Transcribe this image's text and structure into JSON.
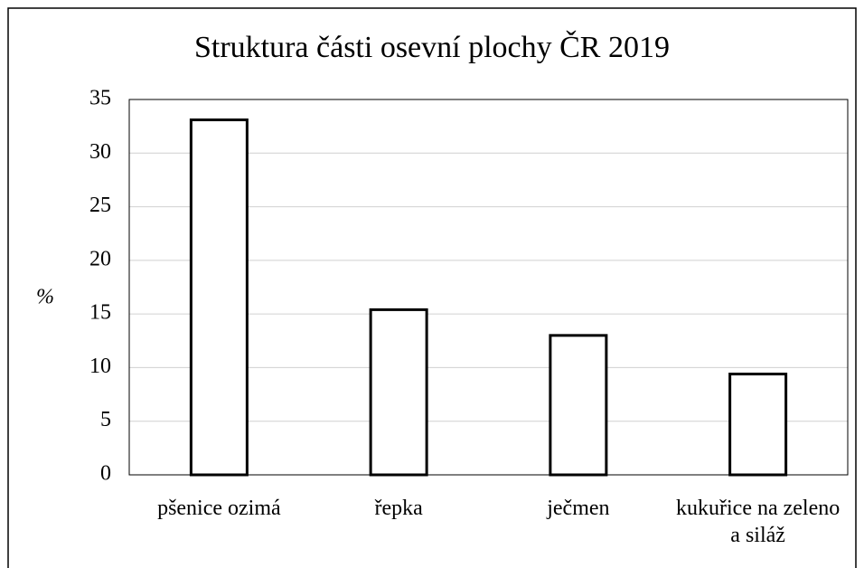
{
  "chart_data": {
    "type": "bar",
    "title": "Struktura části osevní plochy ČR 2019",
    "y_label": "%",
    "categories": [
      "pšenice ozimá",
      "řepka",
      "ječmen",
      "kukuřice na zeleno a siláž"
    ],
    "values": [
      33.1,
      15.4,
      13.0,
      9.4
    ],
    "color": "#ffffff",
    "edge_color": "#000000",
    "ylim": [
      0,
      35
    ],
    "yticks": [
      0,
      5,
      10,
      15,
      20,
      25,
      30,
      35
    ],
    "grid": true
  }
}
